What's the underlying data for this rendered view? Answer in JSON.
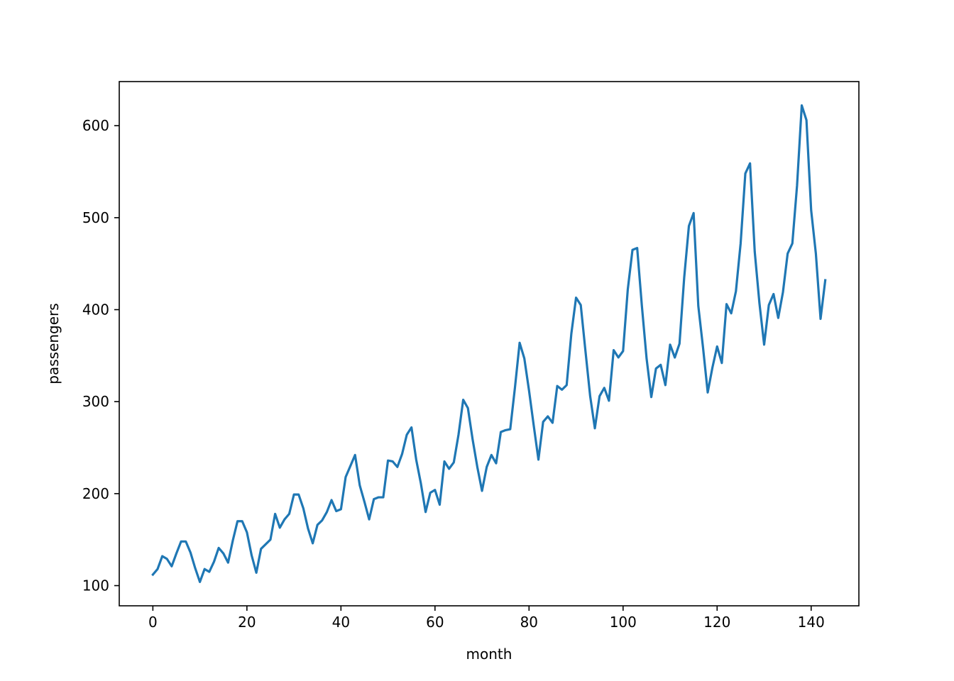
{
  "chart_data": {
    "type": "line",
    "title": "",
    "xlabel": "month",
    "ylabel": "passengers",
    "xlim": [
      -7.15,
      150.15
    ],
    "ylim": [
      78.05,
      647.95
    ],
    "xticks": [
      0,
      20,
      40,
      60,
      80,
      100,
      120,
      140
    ],
    "yticks": [
      100,
      200,
      300,
      400,
      500,
      600
    ],
    "grid": false,
    "legend": "none",
    "series": [
      {
        "color": "#1f77b4",
        "x": [
          0,
          1,
          2,
          3,
          4,
          5,
          6,
          7,
          8,
          9,
          10,
          11,
          12,
          13,
          14,
          15,
          16,
          17,
          18,
          19,
          20,
          21,
          22,
          23,
          24,
          25,
          26,
          27,
          28,
          29,
          30,
          31,
          32,
          33,
          34,
          35,
          36,
          37,
          38,
          39,
          40,
          41,
          42,
          43,
          44,
          45,
          46,
          47,
          48,
          49,
          50,
          51,
          52,
          53,
          54,
          55,
          56,
          57,
          58,
          59,
          60,
          61,
          62,
          63,
          64,
          65,
          66,
          67,
          68,
          69,
          70,
          71,
          72,
          73,
          74,
          75,
          76,
          77,
          78,
          79,
          80,
          81,
          82,
          83,
          84,
          85,
          86,
          87,
          88,
          89,
          90,
          91,
          92,
          93,
          94,
          95,
          96,
          97,
          98,
          99,
          100,
          101,
          102,
          103,
          104,
          105,
          106,
          107,
          108,
          109,
          110,
          111,
          112,
          113,
          114,
          115,
          116,
          117,
          118,
          119,
          120,
          121,
          122,
          123,
          124,
          125,
          126,
          127,
          128,
          129,
          130,
          131,
          132,
          133,
          134,
          135,
          136,
          137,
          138,
          139,
          140,
          141,
          142,
          143
        ],
        "y": [
          112,
          118,
          132,
          129,
          121,
          135,
          148,
          148,
          136,
          119,
          104,
          118,
          115,
          126,
          141,
          135,
          125,
          149,
          170,
          170,
          158,
          133,
          114,
          140,
          145,
          150,
          178,
          163,
          172,
          178,
          199,
          199,
          184,
          162,
          146,
          166,
          171,
          180,
          193,
          181,
          183,
          218,
          230,
          242,
          209,
          191,
          172,
          194,
          196,
          196,
          236,
          235,
          229,
          243,
          264,
          272,
          237,
          211,
          180,
          201,
          204,
          188,
          235,
          227,
          234,
          264,
          302,
          293,
          259,
          229,
          203,
          229,
          242,
          233,
          267,
          269,
          270,
          315,
          364,
          347,
          312,
          274,
          237,
          278,
          284,
          277,
          317,
          313,
          318,
          374,
          413,
          405,
          355,
          306,
          271,
          306,
          315,
          301,
          356,
          348,
          355,
          422,
          465,
          467,
          404,
          347,
          305,
          336,
          340,
          318,
          362,
          348,
          363,
          435,
          491,
          505,
          404,
          359,
          310,
          337,
          360,
          342,
          406,
          396,
          420,
          472,
          548,
          559,
          463,
          407,
          362,
          405,
          417,
          391,
          419,
          461,
          472,
          535,
          622,
          606,
          508,
          461,
          390,
          432
        ]
      }
    ]
  }
}
